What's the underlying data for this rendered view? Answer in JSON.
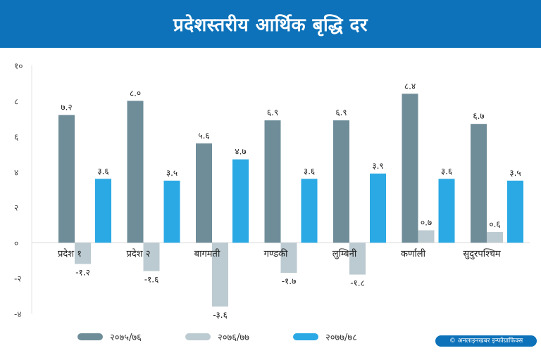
{
  "title": "प्रदेशस्तरीय आर्थिक बृद्धि दर",
  "credit": "© अनलाइनखबर इन्फोग्राफिक्स",
  "colors": {
    "series1": "#6f8d99",
    "series2": "#bccbd1",
    "series3": "#2aa9e4",
    "header": "#0d72b9"
  },
  "chart_data": {
    "type": "bar",
    "title": "प्रदेशस्तरीय आर्थिक बृद्धि दर",
    "xlabel": "",
    "ylabel": "",
    "ylim": [
      -4,
      10
    ],
    "yticks": [
      -4,
      -2,
      0,
      2,
      4,
      6,
      8,
      10
    ],
    "ytick_labels": [
      "-४",
      "-२",
      "०",
      "२",
      "४",
      "६",
      "८",
      "१०"
    ],
    "categories": [
      "प्रदेश १",
      "प्रदेश २",
      "बागमती",
      "गण्डकी",
      "लुम्बिनी",
      "कर्णाली",
      "सुदुरपश्चिम"
    ],
    "series": [
      {
        "name": "२०७५/७६",
        "values": [
          7.2,
          8.0,
          5.6,
          6.9,
          6.9,
          8.4,
          6.7
        ],
        "labels": [
          "७.२",
          "८.०",
          "५.६",
          "६.९",
          "६.९",
          "८.४",
          "६.७"
        ]
      },
      {
        "name": "२०७६/७७",
        "values": [
          -1.2,
          -1.6,
          -3.6,
          -1.7,
          -1.8,
          0.7,
          0.6
        ],
        "labels": [
          "-१.२",
          "-१.६",
          "-३.६",
          "-१.७",
          "-१.८",
          "०.७",
          "०.६"
        ]
      },
      {
        "name": "२०७७/७८",
        "values": [
          3.6,
          3.5,
          4.7,
          3.6,
          3.9,
          3.6,
          3.5
        ],
        "labels": [
          "३.६",
          "३.५",
          "४.७",
          "३.६",
          "३.९",
          "३.६",
          "३.५"
        ]
      }
    ],
    "legend": "bottom-left"
  }
}
